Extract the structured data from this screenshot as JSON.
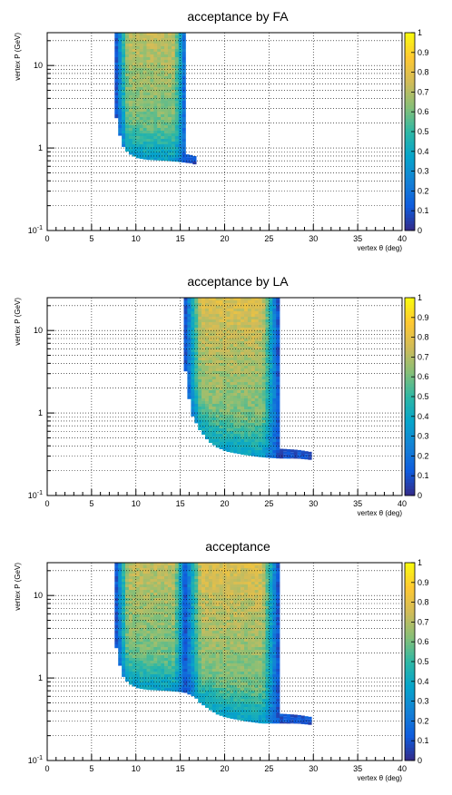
{
  "colorbar": {
    "ticks": [
      "0",
      "0.1",
      "0.2",
      "0.3",
      "0.4",
      "0.5",
      "0.6",
      "0.7",
      "0.8",
      "0.9",
      "1"
    ],
    "palette": [
      "#352a87",
      "#0f5cdd",
      "#1481d6",
      "#06a4ca",
      "#2eb7a4",
      "#87bf77",
      "#d1bb59",
      "#fec832",
      "#f9fb0e"
    ]
  },
  "chart_data": [
    {
      "type": "heatmap",
      "title": "acceptance by FA",
      "xlabel": "vertex θ (deg)",
      "ylabel": "vertex P (GeV)",
      "x_ticks": [
        "0",
        "5",
        "10",
        "15",
        "20",
        "25",
        "30",
        "35",
        "40"
      ],
      "y_ticks": [
        "10^-1",
        "1",
        "10"
      ],
      "xlim": [
        0,
        40
      ],
      "ylim": [
        0.1,
        25
      ],
      "y_scale": "log",
      "z_range": [
        0,
        1
      ],
      "grid": true,
      "bands": [
        {
          "theta_min": 7.6,
          "theta_max": 15.4,
          "edge": [
            [
              7.6,
              2.3
            ],
            [
              8.2,
              1.1
            ],
            [
              9,
              0.85
            ],
            [
              10,
              0.75
            ],
            [
              11,
              0.72
            ],
            [
              13,
              0.7
            ],
            [
              14.5,
              0.68
            ],
            [
              16,
              0.65
            ],
            [
              16.8,
              0.62
            ]
          ],
          "core": 0.72
        }
      ]
    },
    {
      "type": "heatmap",
      "title": "acceptance by LA",
      "xlabel": "vertex θ (deg)",
      "ylabel": "vertex P (GeV)",
      "x_ticks": [
        "0",
        "5",
        "10",
        "15",
        "20",
        "25",
        "30",
        "35",
        "40"
      ],
      "y_ticks": [
        "10^-1",
        "1",
        "10"
      ],
      "xlim": [
        0,
        40
      ],
      "ylim": [
        0.1,
        25
      ],
      "y_scale": "log",
      "z_range": [
        0,
        1
      ],
      "grid": true,
      "bands": [
        {
          "theta_min": 15.4,
          "theta_max": 25.8,
          "edge": [
            [
              15.4,
              3.2
            ],
            [
              16,
              1.0
            ],
            [
              17,
              0.62
            ],
            [
              18,
              0.45
            ],
            [
              19,
              0.38
            ],
            [
              20,
              0.34
            ],
            [
              22,
              0.31
            ],
            [
              24,
              0.29
            ],
            [
              26,
              0.28
            ],
            [
              28,
              0.28
            ],
            [
              29.5,
              0.27
            ]
          ],
          "core": 0.78
        }
      ]
    },
    {
      "type": "heatmap",
      "title": "acceptance",
      "xlabel": "vertex θ (deg)",
      "ylabel": "vertex P (GeV)",
      "x_ticks": [
        "0",
        "5",
        "10",
        "15",
        "20",
        "25",
        "30",
        "35",
        "40"
      ],
      "y_ticks": [
        "10^-1",
        "1",
        "10"
      ],
      "xlim": [
        0,
        40
      ],
      "ylim": [
        0.1,
        25
      ],
      "y_scale": "log",
      "z_range": [
        0,
        1
      ],
      "grid": true,
      "bands": [
        {
          "theta_min": 7.6,
          "theta_max": 15.4,
          "edge": [
            [
              7.6,
              2.3
            ],
            [
              8.2,
              1.1
            ],
            [
              9,
              0.85
            ],
            [
              10,
              0.75
            ],
            [
              11,
              0.72
            ],
            [
              13,
              0.7
            ],
            [
              14.5,
              0.68
            ],
            [
              15.4,
              0.66
            ]
          ],
          "core": 0.72
        },
        {
          "theta_min": 15.4,
          "theta_max": 25.8,
          "edge": [
            [
              15.4,
              0.66
            ],
            [
              16.5,
              0.58
            ],
            [
              17,
              0.5
            ],
            [
              18,
              0.42
            ],
            [
              19,
              0.36
            ],
            [
              20,
              0.33
            ],
            [
              22,
              0.3
            ],
            [
              24,
              0.28
            ],
            [
              26,
              0.28
            ],
            [
              28,
              0.28
            ],
            [
              29.5,
              0.27
            ]
          ],
          "core": 0.78
        }
      ]
    }
  ]
}
